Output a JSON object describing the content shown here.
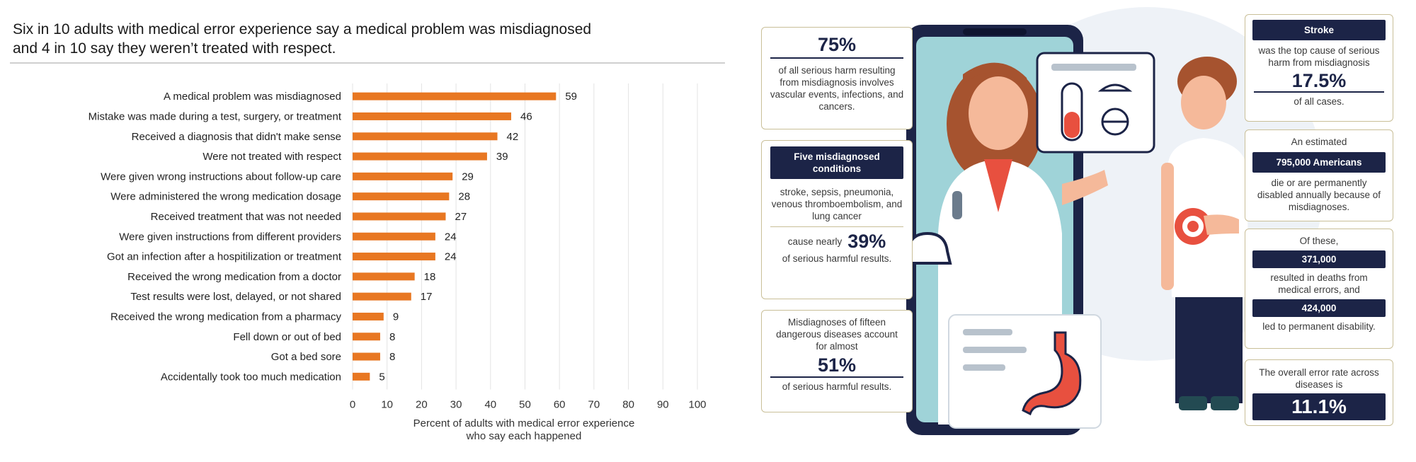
{
  "chart": {
    "title_line1": "Six in 10 adults with medical error experience say a medical problem was misdiagnosed",
    "title_line2": "and 4 in 10 say they weren’t treated with respect.",
    "xlabel_line1": "Percent of adults with medical error experience",
    "xlabel_line2": "who say each happened"
  },
  "chart_data": {
    "type": "bar",
    "orientation": "horizontal",
    "title": "Six in 10 adults with medical error experience say a medical problem was misdiagnosed and 4 in 10 say they weren’t treated with respect.",
    "xlabel": "Percent of adults with medical error experience who say each happened",
    "ylabel": "",
    "xlim": [
      0,
      100
    ],
    "xticks": [
      0,
      10,
      20,
      30,
      40,
      50,
      60,
      70,
      80,
      90,
      100
    ],
    "bar_color": "#e87722",
    "categories": [
      "A medical problem was misdiagnosed",
      "Mistake was made during a test, surgery, or treatment",
      "Received a diagnosis that didn't make sense",
      "Were not treated with respect",
      "Were given wrong instructions about follow-up care",
      "Were administered the wrong medication dosage",
      "Received treatment that was not needed",
      "Were given instructions from different providers",
      "Got an infection after a hospitilization or treatment",
      "Received the wrong medication from a doctor",
      "Test results were lost, delayed, or not shared",
      "Received the wrong medication from a pharmacy",
      "Fell down or out of bed",
      "Got a bed sore",
      "Accidentally took too much medication"
    ],
    "values": [
      59,
      46,
      42,
      39,
      29,
      28,
      27,
      24,
      24,
      18,
      17,
      9,
      8,
      8,
      5
    ]
  },
  "infographic": {
    "colors": {
      "navy": "#1c2447",
      "border": "#c9bf98",
      "accent_red": "#e8503f",
      "bg_blue": "#9fd3d8"
    },
    "card1": {
      "stat": "75%",
      "text": "of all serious harm resulting from misdiagnosis involves vascular events, infections, and cancers."
    },
    "card2": {
      "header": "Five misdiagnosed conditions",
      "text": "stroke, sepsis, pneumonia, venous thromboembolism, and lung cancer",
      "cause": "cause nearly",
      "stat": "39%",
      "tail": "of serious harmful results."
    },
    "card3": {
      "text": "Misdiagnoses of fifteen dangerous diseases account for almost",
      "stat": "51%",
      "tail": "of serious harmful results."
    },
    "card4": {
      "header": "Stroke",
      "text": "was the top cause of serious harm from misdiagnosis",
      "stat": "17.5%",
      "tail": "of all cases."
    },
    "card5": {
      "pre": "An estimated",
      "header": "795,000 Americans",
      "text": "die or are permanently disabled annually because of misdiagnoses."
    },
    "card6": {
      "pre": "Of these,",
      "num1": "371,000",
      "text1": "resulted in deaths from medical errors, and",
      "num2": "424,000",
      "text2": "led to permanent disability."
    },
    "card7": {
      "text": "The overall error rate across diseases is",
      "stat": "11.1%"
    }
  }
}
